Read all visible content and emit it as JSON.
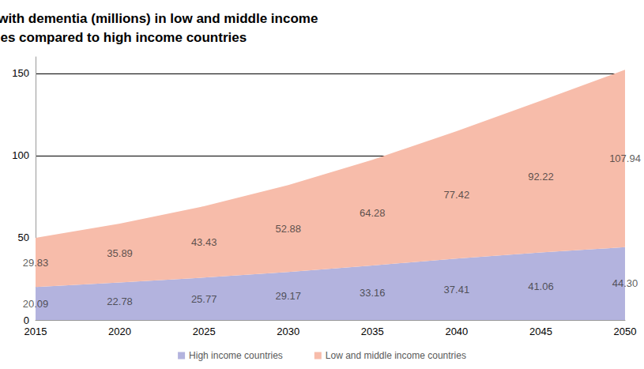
{
  "chart_data": {
    "type": "area",
    "title": "Number of people with dementia (millions) in low and middle income countries compared to high income countries",
    "categories": [
      "2015",
      "2020",
      "2025",
      "2030",
      "2035",
      "2040",
      "2045",
      "2050"
    ],
    "series": [
      {
        "name": "High income countries",
        "color": "#b3b3de",
        "values": [
          20.09,
          22.78,
          25.77,
          29.17,
          33.16,
          37.41,
          41.06,
          44.3
        ],
        "value_labels": [
          "20.09",
          "22.78",
          "25.77",
          "29.17",
          "33.16",
          "37.41",
          "41.06",
          "44.30"
        ]
      },
      {
        "name": "Low and middle income countries",
        "color": "#f7bcaa",
        "values": [
          29.83,
          35.89,
          43.43,
          52.88,
          64.28,
          77.42,
          92.22,
          107.94
        ],
        "value_labels": [
          "29.83",
          "35.89",
          "43.43",
          "52.88",
          "64.28",
          "77.42",
          "92.22",
          "107.94"
        ]
      }
    ],
    "ylim": [
      0,
      160
    ],
    "yticks": [
      0,
      50,
      100,
      150
    ],
    "stacked": true,
    "data_labels": true,
    "grid": true,
    "legend": "bottom"
  }
}
